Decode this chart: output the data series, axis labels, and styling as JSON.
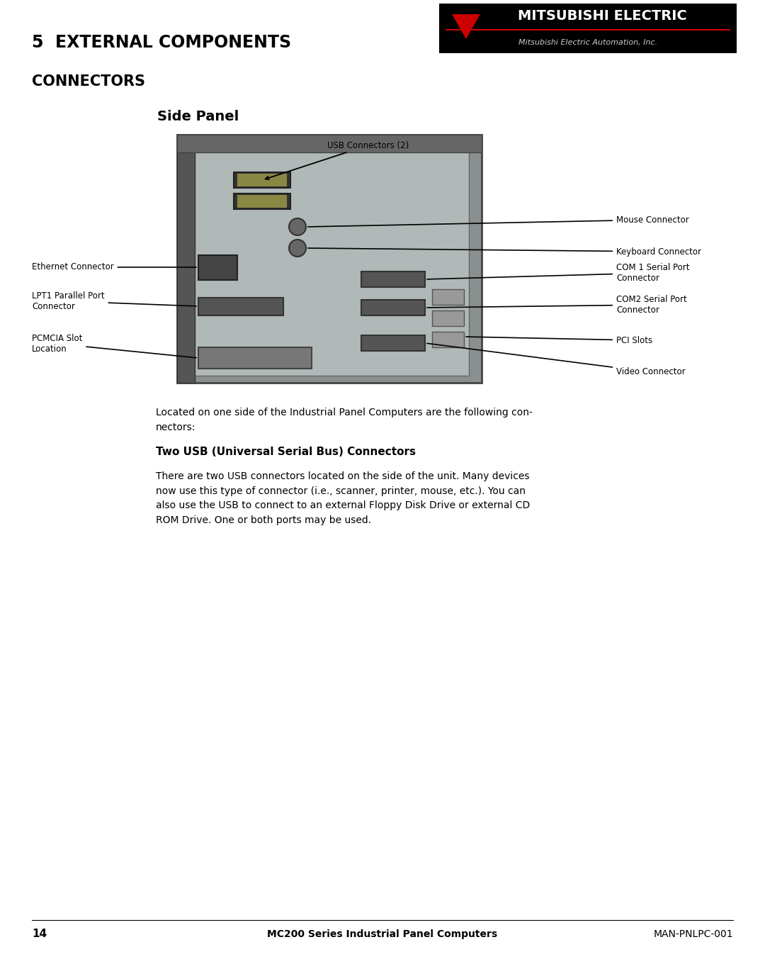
{
  "page_title": "5  EXTERNAL COMPONENTS",
  "section_title": "CONNECTORS",
  "diagram_title": "Side Panel",
  "logo_top_text": "MITSUBISHI ELECTRIC",
  "logo_bottom_text": "Mitsubishi Electric Automation, Inc.",
  "usb_label": "USB Connectors (2)",
  "labels_right": [
    "Mouse Connector",
    "Keyboard Connector",
    "COM 1 Serial Port\nConnector",
    "COM2 Serial Port\nConnector",
    "PCI Slots",
    "Video Connector"
  ],
  "labels_left": [
    "Ethernet Connector",
    "LPT1 Parallel Port\nConnector",
    "PCMCIA Slot\nLocation"
  ],
  "intro_text": "Located on one side of the Industrial Panel Computers are the following con-\nnectors:",
  "section2_title": "Two USB (Universal Serial Bus) Connectors",
  "section2_body": "There are two USB connectors located on the side of the unit. Many devices\nnow use this type of connector (i.e., scanner, printer, mouse, etc.). You can\nalso use the USB to connect to an external Floppy Disk Drive or external CD\nROM Drive. One or both ports may be used.",
  "footer_page": "14",
  "footer_center": "MC200 Series Industrial Panel Computers",
  "footer_right": "MAN-PNLPC-001",
  "bg_color": "#ffffff",
  "text_color": "#000000",
  "logo_bg": "#000000",
  "logo_text_color": "#ffffff",
  "logo_accent_color": "#cc0000"
}
